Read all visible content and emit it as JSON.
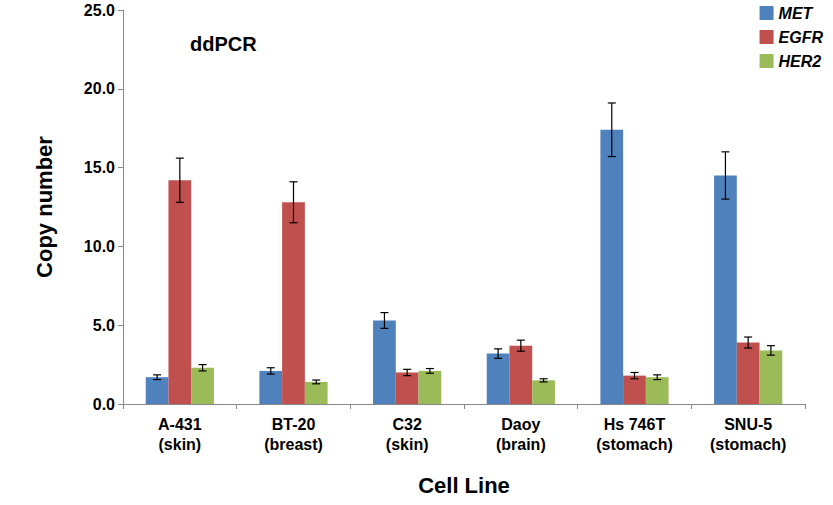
{
  "chart_data": {
    "type": "bar",
    "annotation": "ddPCR",
    "x_label": "Cell Line",
    "y_label": "Copy number",
    "categories": [
      "A-431\n(skin)",
      "BT-20\n(breast)",
      "C32\n(skin)",
      "Daoy\n(brain)",
      "Hs 746T\n(stomach)",
      "SNU-5\n(stomach)"
    ],
    "series": [
      {
        "name": "MET",
        "color": "#4f81bd",
        "values": [
          1.7,
          2.1,
          5.3,
          3.2,
          17.4,
          14.5
        ],
        "errors": [
          0.15,
          0.2,
          0.5,
          0.3,
          1.7,
          1.5
        ]
      },
      {
        "name": "EGFR",
        "color": "#c0504d",
        "values": [
          14.2,
          12.8,
          2.0,
          3.7,
          1.8,
          3.9
        ],
        "errors": [
          1.4,
          1.3,
          0.2,
          0.35,
          0.2,
          0.35
        ]
      },
      {
        "name": "HER2",
        "color": "#9bbb59",
        "values": [
          2.3,
          1.4,
          2.1,
          1.5,
          1.7,
          3.4
        ],
        "errors": [
          0.2,
          0.12,
          0.15,
          0.1,
          0.15,
          0.3
        ]
      }
    ],
    "ylim": [
      0,
      25
    ],
    "yticks": [
      {
        "value": 0,
        "label": "0.0"
      },
      {
        "value": 5,
        "label": "5.0"
      },
      {
        "value": 10,
        "label": "10.0"
      },
      {
        "value": 15,
        "label": "15.0"
      },
      {
        "value": 20,
        "label": "20.0"
      },
      {
        "value": 25,
        "label": "25.0"
      }
    ],
    "grid": false,
    "legend": "top-right"
  }
}
